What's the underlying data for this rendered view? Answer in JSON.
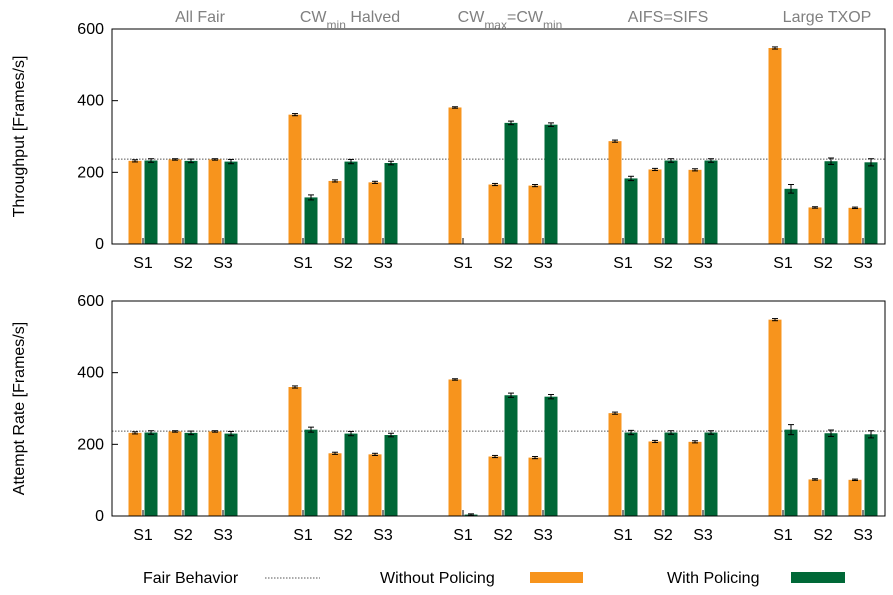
{
  "colors": {
    "without_policing": "#F7941D",
    "with_policing": "#006837",
    "fair_line": "#555555",
    "group_label": "#808080"
  },
  "legend": {
    "fair": "Fair Behavior",
    "without": "Without Policing",
    "with": "With Policing"
  },
  "group_titles": [
    {
      "base": "All Fair"
    },
    {
      "base": "CW",
      "sub": "min",
      "rest": " Halved"
    },
    {
      "base": "CW",
      "sub": "max",
      "mid": "=CW",
      "sub2": "min"
    },
    {
      "base": "AIFS=SIFS"
    },
    {
      "base": "Large TXOP"
    }
  ],
  "chart_data": [
    {
      "type": "bar",
      "ylabel": "Throughput [Frames/s]",
      "ylim": [
        0,
        600
      ],
      "yticks": [
        "0",
        "200",
        "400",
        "600"
      ],
      "fair_behavior": 237,
      "groups": [
        "All Fair",
        "CWmin Halved",
        "CWmax=CWmin",
        "AIFS=SIFS",
        "Large TXOP"
      ],
      "categories": [
        "S1",
        "S2",
        "S3"
      ],
      "series": [
        {
          "name": "Without Policing",
          "values": [
            [
              232,
              236,
              236
            ],
            [
              361,
              176,
              172
            ],
            [
              381,
              166,
              163
            ],
            [
              287,
              208,
              207
            ],
            [
              547,
              102,
              101
            ]
          ],
          "errors": [
            [
              3,
              2,
              2
            ],
            [
              3,
              3,
              3
            ],
            [
              2,
              3,
              3
            ],
            [
              3,
              3,
              3
            ],
            [
              3,
              2,
              2
            ]
          ]
        },
        {
          "name": "With Policing",
          "values": [
            [
              233,
              232,
              230
            ],
            [
              130,
              230,
              226
            ],
            [
              0,
              338,
              333
            ],
            [
              183,
              233,
              233
            ],
            [
              154,
              231,
              228
            ]
          ],
          "errors": [
            [
              5,
              5,
              6
            ],
            [
              7,
              6,
              5
            ],
            [
              0,
              5,
              5
            ],
            [
              6,
              5,
              5
            ],
            [
              12,
              9,
              10
            ]
          ]
        }
      ]
    },
    {
      "type": "bar",
      "ylabel": "Attempt Rate [Frames/s]",
      "ylim": [
        0,
        600
      ],
      "yticks": [
        "0",
        "200",
        "400",
        "600"
      ],
      "fair_behavior": 237,
      "groups": [
        "All Fair",
        "CWmin Halved",
        "CWmax=CWmin",
        "AIFS=SIFS",
        "Large TXOP"
      ],
      "categories": [
        "S1",
        "S2",
        "S3"
      ],
      "series": [
        {
          "name": "Without Policing",
          "values": [
            [
              232,
              236,
              236
            ],
            [
              360,
              175,
              172
            ],
            [
              381,
              166,
              163
            ],
            [
              287,
              208,
              207
            ],
            [
              548,
              102,
              101
            ]
          ],
          "errors": [
            [
              3,
              2,
              2
            ],
            [
              3,
              3,
              3
            ],
            [
              2,
              3,
              3
            ],
            [
              3,
              3,
              3
            ],
            [
              3,
              2,
              2
            ]
          ]
        },
        {
          "name": "With Policing",
          "values": [
            [
              233,
              232,
              230
            ],
            [
              241,
              230,
              226
            ],
            [
              4,
              337,
              333
            ],
            [
              233,
              233,
              233
            ],
            [
              241,
              231,
              228
            ]
          ],
          "errors": [
            [
              5,
              5,
              6
            ],
            [
              7,
              6,
              5
            ],
            [
              2,
              6,
              6
            ],
            [
              6,
              5,
              5
            ],
            [
              14,
              9,
              10
            ]
          ]
        }
      ]
    }
  ]
}
